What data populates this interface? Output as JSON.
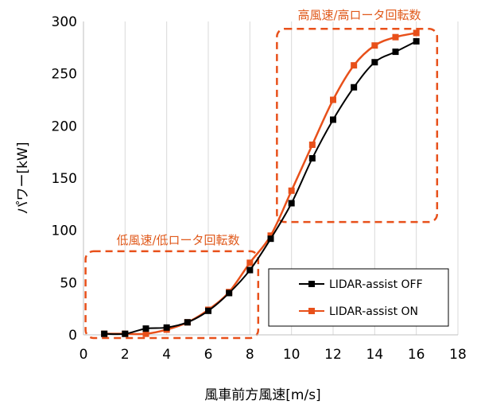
{
  "chart_data": {
    "type": "line",
    "xlabel": "風車前方風速[m/s]",
    "ylabel": "パワー[kW]",
    "xlim": [
      0,
      18
    ],
    "ylim": [
      0,
      300
    ],
    "xticks": [
      0,
      2,
      4,
      6,
      8,
      10,
      12,
      14,
      16,
      18
    ],
    "yticks": [
      0,
      50,
      100,
      150,
      200,
      250,
      300
    ],
    "grid": "vertical",
    "legend_position": "bottom-right",
    "series": [
      {
        "name": "LIDAR-assist OFF",
        "color": "#000000",
        "marker": "square",
        "x": [
          1,
          2,
          3,
          4,
          5,
          6,
          7,
          8,
          9,
          10,
          11,
          12,
          13,
          14,
          15,
          16
        ],
        "y": [
          1,
          1,
          6,
          7,
          12,
          23,
          40,
          62,
          92,
          126,
          169,
          206,
          237,
          261,
          271,
          281
        ]
      },
      {
        "name": "LIDAR-assist ON",
        "color": "#e8501a",
        "marker": "square",
        "x": [
          1,
          2,
          3,
          4,
          5,
          6,
          7,
          8,
          9,
          10,
          11,
          12,
          13,
          14,
          15,
          16
        ],
        "y": [
          1,
          1,
          1,
          5,
          12,
          24,
          41,
          69,
          95,
          138,
          182,
          225,
          258,
          277,
          285,
          289
        ]
      }
    ],
    "annotations": [
      {
        "text": "低風速/低ロータ回転数",
        "color": "#e8501a"
      },
      {
        "text": "高風速/高ロータ回転数",
        "color": "#e8501a"
      }
    ]
  }
}
